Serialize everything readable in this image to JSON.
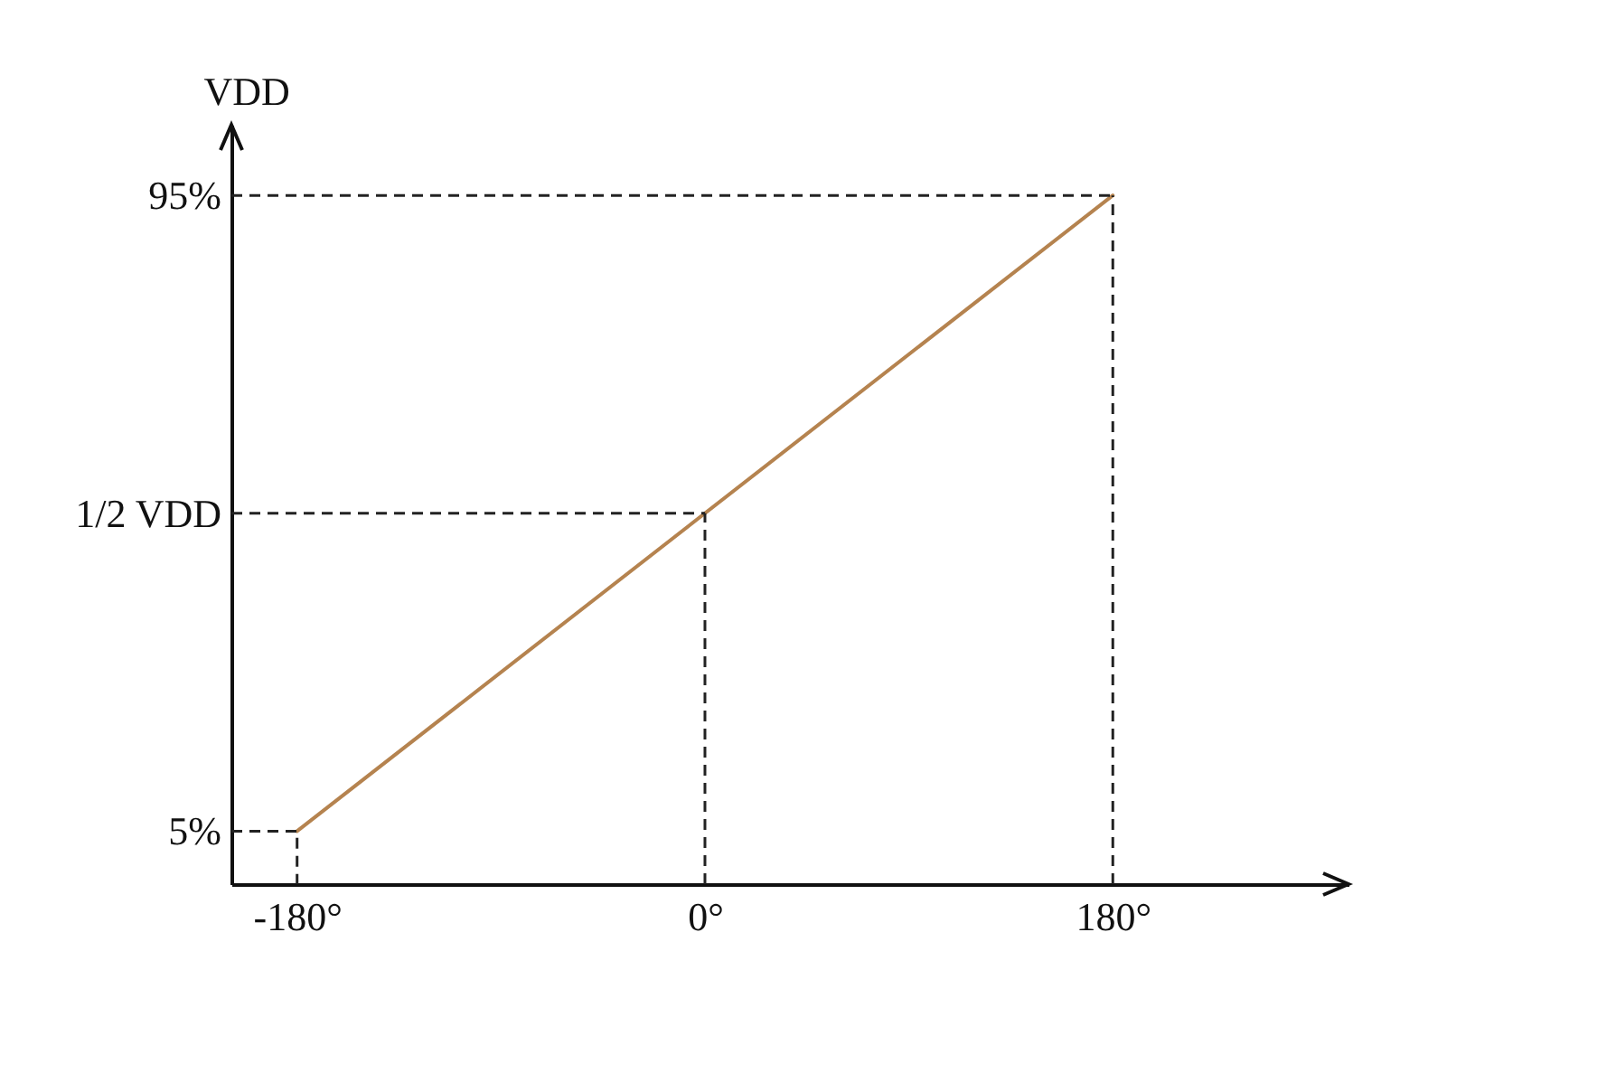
{
  "chart_data": {
    "type": "line",
    "ylabel": "VDD",
    "x": [
      -180,
      180
    ],
    "series": [
      {
        "color": "#b5834f",
        "values": [
          5,
          95
        ]
      }
    ],
    "xlim": [
      -209,
      284
    ],
    "ylim": [
      -2.5,
      105
    ],
    "xticks": [
      {
        "value": -180,
        "label": "-180°"
      },
      {
        "value": 0,
        "label": "0°"
      },
      {
        "value": 180,
        "label": "180°"
      }
    ],
    "yticks": [
      {
        "value": 5,
        "label": "5%"
      },
      {
        "value": 50,
        "label": "1/2 VDD"
      },
      {
        "value": 95,
        "label": "95%"
      }
    ],
    "ref_lines": [
      {
        "axis": "y",
        "value": 95,
        "line_style": "dashed"
      },
      {
        "axis": "y",
        "value": 50,
        "line_style": "dashed"
      },
      {
        "axis": "x",
        "value": 0,
        "line_style": "dashed"
      },
      {
        "axis": "x",
        "value": 180,
        "line_style": "dashed"
      }
    ],
    "marker": "none",
    "line_style": "solid"
  }
}
